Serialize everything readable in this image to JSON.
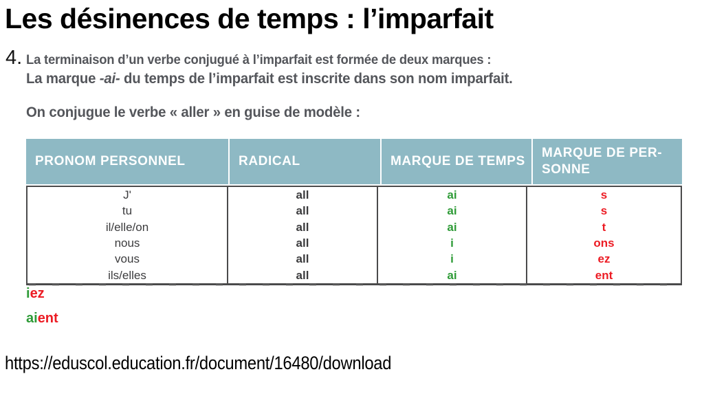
{
  "slide": {
    "title": "Les désinences de temps : l’imparfait",
    "point_number": "4.",
    "intro_line1": "La terminaison d’un verbe conjugué à l’imparfait est formée de deux marques :",
    "intro_line2": {
      "seg1": "La marque ",
      "seg2_bold_italic": "-ai-",
      "seg3": " du temps de l’imparfait est inscrite dans son nom imparf",
      "seg4_bold": "ai",
      "seg5": "t."
    },
    "model_line": "On conjugue le verbe « aller » en guise de modèle :",
    "source_url": "https://eduscol.education.fr/document/16480/download"
  },
  "table": {
    "headers": {
      "col1": "PRONOM PERSONNEL",
      "col2": "RADICAL",
      "col3": "MARQUE DE TEMPS",
      "col4": "MARQUE DE PER-\nSONNE"
    },
    "rows": [
      {
        "pronoun": "J'",
        "radical": "all",
        "tense_mark": "ai",
        "person_mark": "s"
      },
      {
        "pronoun": "tu",
        "radical": "all",
        "tense_mark": "ai",
        "person_mark": "s"
      },
      {
        "pronoun": "il/elle/on",
        "radical": "all",
        "tense_mark": "ai",
        "person_mark": "t"
      },
      {
        "pronoun": "nous",
        "radical": "all",
        "tense_mark": "i",
        "person_mark": "ons"
      },
      {
        "pronoun": "vous",
        "radical": "all",
        "tense_mark": "i",
        "person_mark": "ez"
      },
      {
        "pronoun": "ils/elles",
        "radical": "all",
        "tense_mark": "ai",
        "person_mark": "ent"
      }
    ]
  },
  "extra_endings": [
    {
      "green_part": "i",
      "red_part": "ez"
    },
    {
      "green_part": "ai",
      "red_part": "ent"
    }
  ],
  "colors": {
    "header_bg": "#8eb9c4",
    "header_text": "#ffffff",
    "table_border": "#4a4a4b",
    "body_text": "#3b3b3d",
    "paragraph_text": "#54565b",
    "tense_mark_green": "#2e9b37",
    "person_mark_red": "#ec1c24"
  }
}
